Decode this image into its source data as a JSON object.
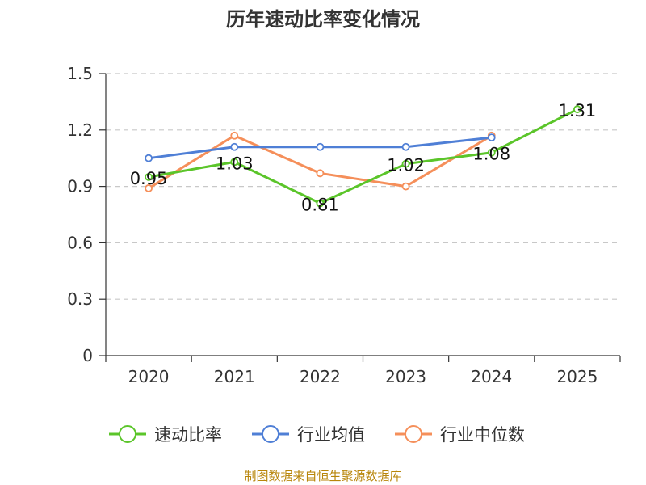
{
  "chart_data": {
    "type": "line",
    "title": "历年速动比率变化情况",
    "categories": [
      "2020",
      "2021",
      "2022",
      "2023",
      "2024",
      "2025"
    ],
    "y_ticks": [
      "0",
      "0.3",
      "0.6",
      "0.9",
      "1.2",
      "1.5"
    ],
    "ylim": [
      0,
      1.5
    ],
    "grid": true,
    "legend_position": "bottom",
    "series": [
      {
        "name": "速动比率",
        "color": "#5bc52a",
        "values": [
          0.95,
          1.03,
          0.81,
          1.02,
          1.08,
          1.31
        ],
        "labels": [
          "0.95",
          "1.03",
          "0.81",
          "1.02",
          "1.08",
          "1.31"
        ]
      },
      {
        "name": "行业均值",
        "color": "#4f7fd6",
        "values": [
          1.05,
          1.11,
          1.11,
          1.11,
          1.16,
          null
        ]
      },
      {
        "name": "行业中位数",
        "color": "#f58f5a",
        "values": [
          0.89,
          1.17,
          0.97,
          0.9,
          1.17,
          null
        ]
      }
    ]
  },
  "source": "制图数据来自恒生聚源数据库"
}
